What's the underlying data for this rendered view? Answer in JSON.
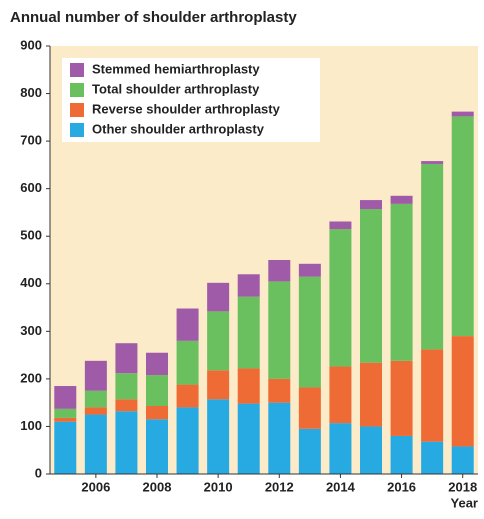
{
  "chart_data": {
    "type": "stacked_bar",
    "title": "Annual number of shoulder arthroplasty",
    "x_label": "Year",
    "categories": [
      null,
      "2006",
      null,
      "2008",
      null,
      "2010",
      null,
      "2012",
      null,
      "2014",
      null,
      "2016",
      null,
      "2018"
    ],
    "series": [
      {
        "name": "Other shoulder arthroplasty",
        "color": "#27a9e1",
        "values": [
          110,
          125,
          132,
          115,
          140,
          157,
          148,
          150,
          95,
          107,
          100,
          80,
          68,
          58
        ]
      },
      {
        "name": "Reverse shoulder arthroplasty",
        "color": "#ef6b35",
        "values": [
          8,
          15,
          25,
          28,
          48,
          61,
          74,
          50,
          87,
          119,
          134,
          158,
          194,
          232
        ]
      },
      {
        "name": "Total shoulder arthroplasty",
        "color": "#6abf5e",
        "values": [
          19,
          35,
          55,
          65,
          92,
          124,
          151,
          205,
          233,
          289,
          323,
          330,
          390,
          462
        ]
      },
      {
        "name": "Stemmed hemiarthroplasty",
        "color": "#a05ba8",
        "values": [
          48,
          63,
          63,
          47,
          68,
          60,
          47,
          45,
          27,
          16,
          19,
          17,
          6,
          10
        ]
      }
    ],
    "ylim": [
      0,
      900
    ],
    "yticks": [
      0,
      100,
      200,
      300,
      400,
      500,
      600,
      700,
      800,
      900
    ],
    "grid": false,
    "legend": "top-left"
  }
}
